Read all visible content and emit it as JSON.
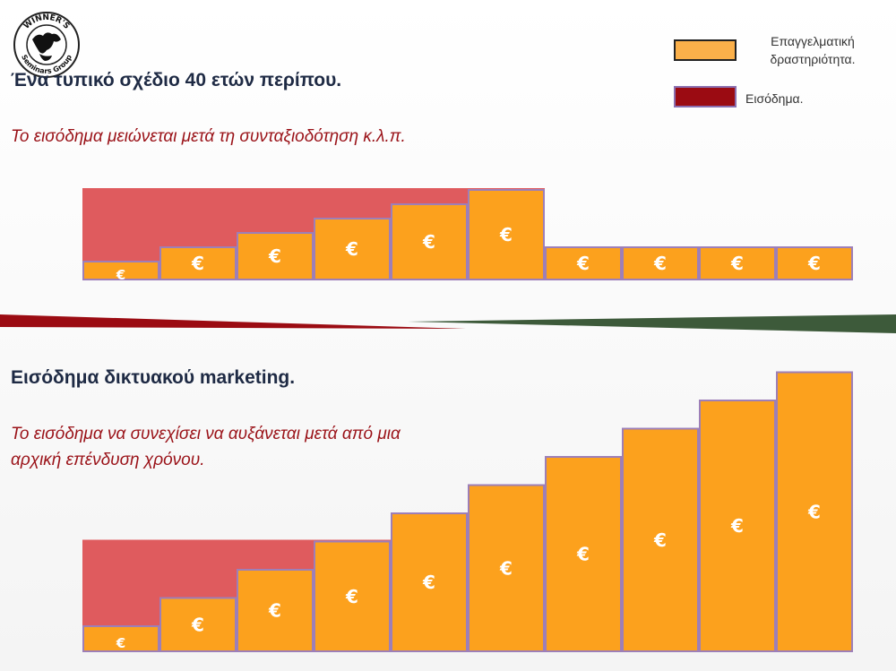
{
  "logo": {
    "arc_top": "WINNER'S",
    "arc_bottom": "Seminars Group",
    "icon": "globe-icon"
  },
  "legend": {
    "items": [
      {
        "label": "Επαγγελματική δραστηριότητα.",
        "color": "#fbb04a",
        "border": "#222222"
      },
      {
        "label": "Εισόδημα.",
        "color": "#9b0b12",
        "border": "#8a6fb0"
      }
    ]
  },
  "section1": {
    "title": "Ένα τυπικό σχέδιο 40 ετών περίπου.",
    "subtitle": "Το εισόδημα μειώνεται μετά τη συνταξιοδότηση κ.λ.π."
  },
  "section2": {
    "title": "Εισόδημα δικτυακού marketing.",
    "subtitle_line1": "Το εισόδημα να συνεχίσει να  αυξάνεται μετά από μια",
    "subtitle_line2": "αρχική επένδυση χρόνου."
  },
  "colors": {
    "bar": "#fca11d",
    "bar_border": "#9d7fb8",
    "income_area": "#df5b5e",
    "title": "#1e2a44",
    "subtitle": "#9a1218"
  },
  "chart_data": [
    {
      "type": "bar",
      "symbol": "€",
      "values": [
        1,
        2,
        3,
        4,
        5,
        6,
        2,
        2,
        2,
        2
      ],
      "income_area": {
        "levels": 6,
        "columns": 6
      }
    },
    {
      "type": "bar",
      "symbol": "€",
      "values": [
        1,
        2,
        3,
        4,
        5,
        6,
        7,
        8,
        9,
        10
      ],
      "income_area": {
        "levels": 4,
        "columns": 4
      }
    }
  ]
}
